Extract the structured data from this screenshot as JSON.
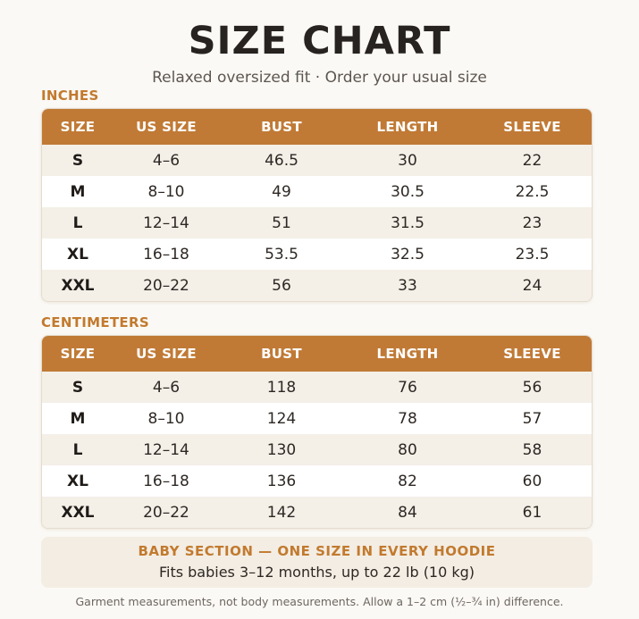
{
  "title": "SIZE CHART",
  "subtitle": "Relaxed oversized fit  ·  Order your usual size",
  "headers": [
    "SIZE",
    "US SIZE",
    "BUST",
    "LENGTH",
    "SLEEVE"
  ],
  "inches": {
    "label": "INCHES",
    "rows": [
      [
        "S",
        "4–6",
        "46.5",
        "30",
        "22"
      ],
      [
        "M",
        "8–10",
        "49",
        "30.5",
        "22.5"
      ],
      [
        "L",
        "12–14",
        "51",
        "31.5",
        "23"
      ],
      [
        "XL",
        "16–18",
        "53.5",
        "32.5",
        "23.5"
      ],
      [
        "XXL",
        "20–22",
        "56",
        "33",
        "24"
      ]
    ]
  },
  "centimeters": {
    "label": "CENTIMETERS",
    "rows": [
      [
        "S",
        "4–6",
        "118",
        "76",
        "56"
      ],
      [
        "M",
        "8–10",
        "124",
        "78",
        "57"
      ],
      [
        "L",
        "12–14",
        "130",
        "80",
        "58"
      ],
      [
        "XL",
        "16–18",
        "136",
        "82",
        "60"
      ],
      [
        "XXL",
        "20–22",
        "142",
        "84",
        "61"
      ]
    ]
  },
  "baby": {
    "title": "BABY SECTION  —  ONE SIZE IN EVERY HOODIE",
    "text": "Fits babies 3–12 months, up to 22 lb (10 kg)"
  },
  "footnote": "Garment measurements, not body measurements. Allow a 1–2 cm (½–¾ in) difference.",
  "colors": {
    "accent": "#c07a35",
    "section_label": "#c27a2e",
    "row_alt": "#f4efe7",
    "background": "#fbf9f5"
  }
}
